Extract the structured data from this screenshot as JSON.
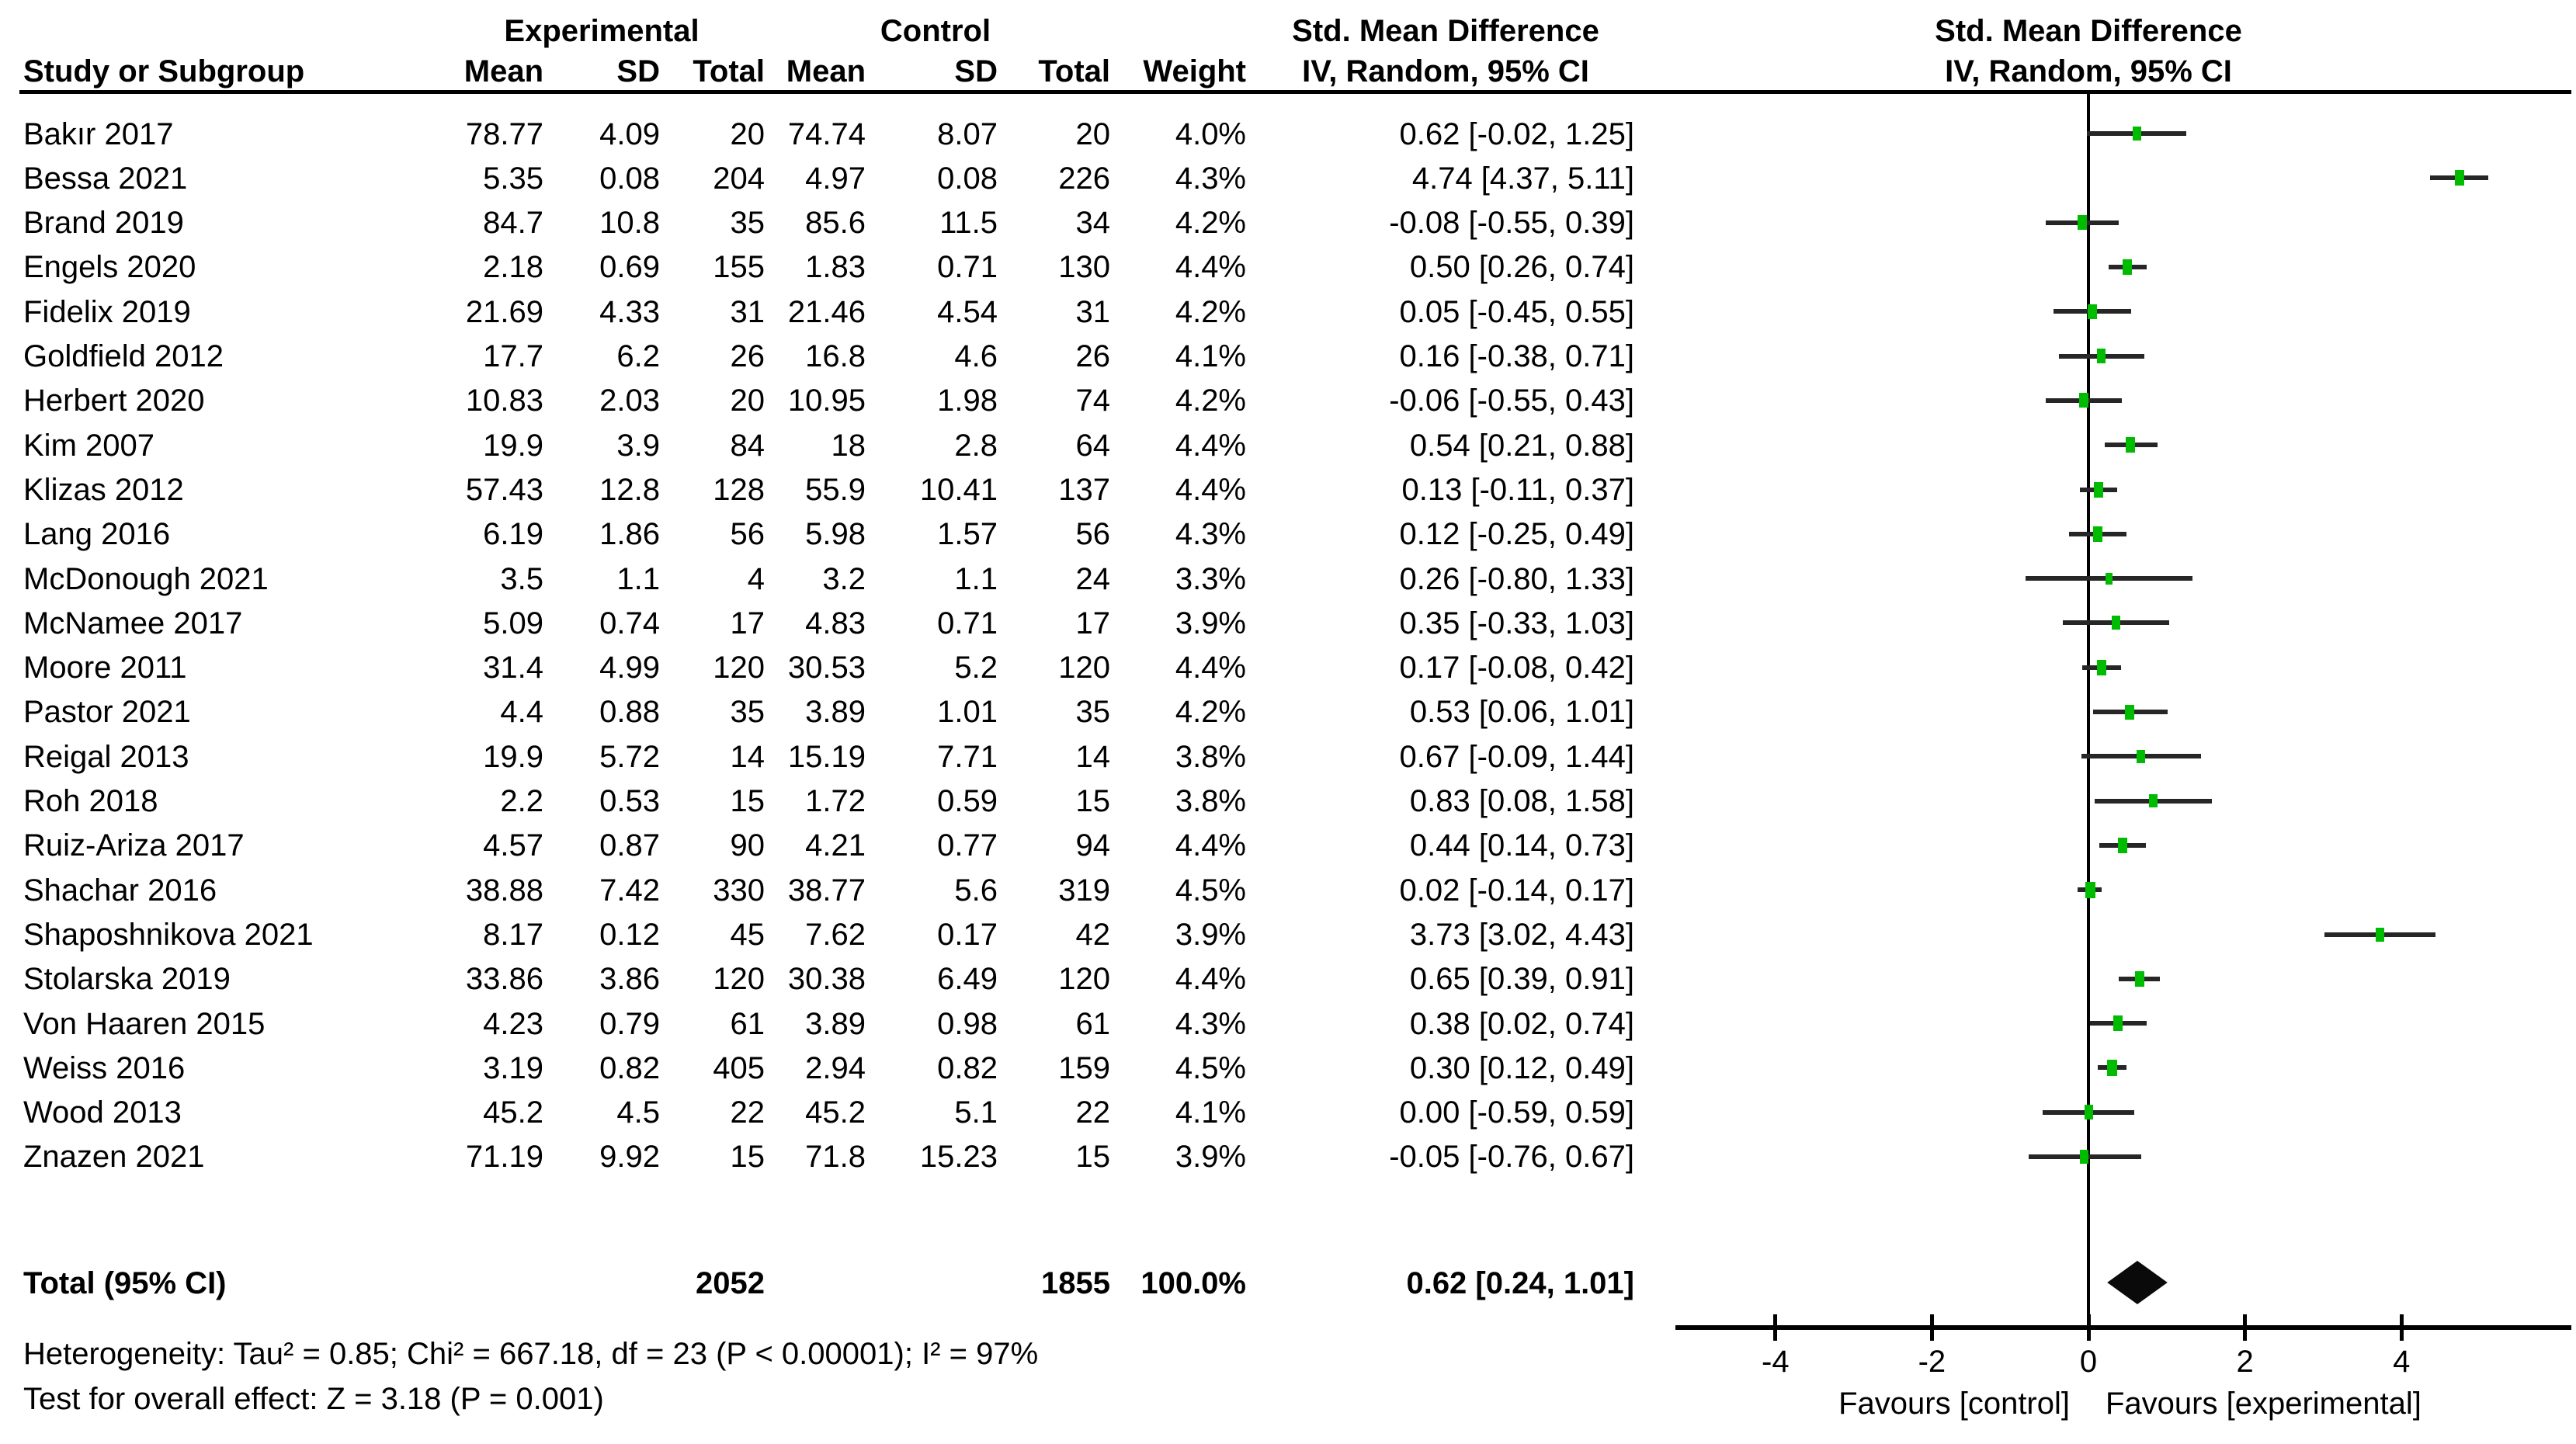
{
  "colors": {
    "marker_green": "#00BC00",
    "ci_line": "#262626",
    "diamond_black": "#0a0a0a",
    "text": "#000000"
  },
  "header": {
    "study_col": "Study or Subgroup",
    "group_experimental": "Experimental",
    "group_control": "Control",
    "mean": "Mean",
    "sd": "SD",
    "total": "Total",
    "weight": "Weight",
    "effect_title": "Std. Mean Difference",
    "effect_subtitle": "IV, Random, 95% CI",
    "plot_title": "Std. Mean Difference",
    "plot_subtitle": "IV, Random, 95% CI"
  },
  "chart_data": {
    "type": "forest",
    "x_ticks": [
      -4,
      -2,
      0,
      2,
      4
    ],
    "xlim": [
      -5.2,
      6.2
    ],
    "zero_line": 0,
    "axis_label_left": "Favours [control]",
    "axis_label_right": "Favours [experimental]",
    "studies": [
      {
        "name": "Bakır 2017",
        "exp_mean": "78.77",
        "exp_sd": "4.09",
        "exp_total": "20",
        "ctrl_mean": "74.74",
        "ctrl_sd": "8.07",
        "ctrl_total": "20",
        "weight": "4.0%",
        "ci_text": "0.62 [-0.02, 1.25]",
        "smd": 0.62,
        "lo": -0.02,
        "hi": 1.25,
        "w": 4.0
      },
      {
        "name": "Bessa 2021",
        "exp_mean": "5.35",
        "exp_sd": "0.08",
        "exp_total": "204",
        "ctrl_mean": "4.97",
        "ctrl_sd": "0.08",
        "ctrl_total": "226",
        "weight": "4.3%",
        "ci_text": "4.74 [4.37, 5.11]",
        "smd": 4.74,
        "lo": 4.37,
        "hi": 5.11,
        "w": 4.3
      },
      {
        "name": "Brand 2019",
        "exp_mean": "84.7",
        "exp_sd": "10.8",
        "exp_total": "35",
        "ctrl_mean": "85.6",
        "ctrl_sd": "11.5",
        "ctrl_total": "34",
        "weight": "4.2%",
        "ci_text": "-0.08 [-0.55, 0.39]",
        "smd": -0.08,
        "lo": -0.55,
        "hi": 0.39,
        "w": 4.2
      },
      {
        "name": "Engels 2020",
        "exp_mean": "2.18",
        "exp_sd": "0.69",
        "exp_total": "155",
        "ctrl_mean": "1.83",
        "ctrl_sd": "0.71",
        "ctrl_total": "130",
        "weight": "4.4%",
        "ci_text": "0.50 [0.26, 0.74]",
        "smd": 0.5,
        "lo": 0.26,
        "hi": 0.74,
        "w": 4.4
      },
      {
        "name": "Fidelix 2019",
        "exp_mean": "21.69",
        "exp_sd": "4.33",
        "exp_total": "31",
        "ctrl_mean": "21.46",
        "ctrl_sd": "4.54",
        "ctrl_total": "31",
        "weight": "4.2%",
        "ci_text": "0.05 [-0.45, 0.55]",
        "smd": 0.05,
        "lo": -0.45,
        "hi": 0.55,
        "w": 4.2
      },
      {
        "name": "Goldfield 2012",
        "exp_mean": "17.7",
        "exp_sd": "6.2",
        "exp_total": "26",
        "ctrl_mean": "16.8",
        "ctrl_sd": "4.6",
        "ctrl_total": "26",
        "weight": "4.1%",
        "ci_text": "0.16 [-0.38, 0.71]",
        "smd": 0.16,
        "lo": -0.38,
        "hi": 0.71,
        "w": 4.1
      },
      {
        "name": "Herbert 2020",
        "exp_mean": "10.83",
        "exp_sd": "2.03",
        "exp_total": "20",
        "ctrl_mean": "10.95",
        "ctrl_sd": "1.98",
        "ctrl_total": "74",
        "weight": "4.2%",
        "ci_text": "-0.06 [-0.55, 0.43]",
        "smd": -0.06,
        "lo": -0.55,
        "hi": 0.43,
        "w": 4.2
      },
      {
        "name": "Kim 2007",
        "exp_mean": "19.9",
        "exp_sd": "3.9",
        "exp_total": "84",
        "ctrl_mean": "18",
        "ctrl_sd": "2.8",
        "ctrl_total": "64",
        "weight": "4.4%",
        "ci_text": "0.54 [0.21, 0.88]",
        "smd": 0.54,
        "lo": 0.21,
        "hi": 0.88,
        "w": 4.4
      },
      {
        "name": "Klizas 2012",
        "exp_mean": "57.43",
        "exp_sd": "12.8",
        "exp_total": "128",
        "ctrl_mean": "55.9",
        "ctrl_sd": "10.41",
        "ctrl_total": "137",
        "weight": "4.4%",
        "ci_text": "0.13 [-0.11, 0.37]",
        "smd": 0.13,
        "lo": -0.11,
        "hi": 0.37,
        "w": 4.4
      },
      {
        "name": "Lang 2016",
        "exp_mean": "6.19",
        "exp_sd": "1.86",
        "exp_total": "56",
        "ctrl_mean": "5.98",
        "ctrl_sd": "1.57",
        "ctrl_total": "56",
        "weight": "4.3%",
        "ci_text": "0.12 [-0.25, 0.49]",
        "smd": 0.12,
        "lo": -0.25,
        "hi": 0.49,
        "w": 4.3
      },
      {
        "name": "McDonough 2021",
        "exp_mean": "3.5",
        "exp_sd": "1.1",
        "exp_total": "4",
        "ctrl_mean": "3.2",
        "ctrl_sd": "1.1",
        "ctrl_total": "24",
        "weight": "3.3%",
        "ci_text": "0.26 [-0.80, 1.33]",
        "smd": 0.26,
        "lo": -0.8,
        "hi": 1.33,
        "w": 3.3
      },
      {
        "name": "McNamee 2017",
        "exp_mean": "5.09",
        "exp_sd": "0.74",
        "exp_total": "17",
        "ctrl_mean": "4.83",
        "ctrl_sd": "0.71",
        "ctrl_total": "17",
        "weight": "3.9%",
        "ci_text": "0.35 [-0.33, 1.03]",
        "smd": 0.35,
        "lo": -0.33,
        "hi": 1.03,
        "w": 3.9
      },
      {
        "name": "Moore 2011",
        "exp_mean": "31.4",
        "exp_sd": "4.99",
        "exp_total": "120",
        "ctrl_mean": "30.53",
        "ctrl_sd": "5.2",
        "ctrl_total": "120",
        "weight": "4.4%",
        "ci_text": "0.17 [-0.08, 0.42]",
        "smd": 0.17,
        "lo": -0.08,
        "hi": 0.42,
        "w": 4.4
      },
      {
        "name": "Pastor 2021",
        "exp_mean": "4.4",
        "exp_sd": "0.88",
        "exp_total": "35",
        "ctrl_mean": "3.89",
        "ctrl_sd": "1.01",
        "ctrl_total": "35",
        "weight": "4.2%",
        "ci_text": "0.53 [0.06, 1.01]",
        "smd": 0.53,
        "lo": 0.06,
        "hi": 1.01,
        "w": 4.2
      },
      {
        "name": "Reigal 2013",
        "exp_mean": "19.9",
        "exp_sd": "5.72",
        "exp_total": "14",
        "ctrl_mean": "15.19",
        "ctrl_sd": "7.71",
        "ctrl_total": "14",
        "weight": "3.8%",
        "ci_text": "0.67 [-0.09, 1.44]",
        "smd": 0.67,
        "lo": -0.09,
        "hi": 1.44,
        "w": 3.8
      },
      {
        "name": "Roh 2018",
        "exp_mean": "2.2",
        "exp_sd": "0.53",
        "exp_total": "15",
        "ctrl_mean": "1.72",
        "ctrl_sd": "0.59",
        "ctrl_total": "15",
        "weight": "3.8%",
        "ci_text": "0.83 [0.08, 1.58]",
        "smd": 0.83,
        "lo": 0.08,
        "hi": 1.58,
        "w": 3.8
      },
      {
        "name": "Ruiz-Ariza 2017",
        "exp_mean": "4.57",
        "exp_sd": "0.87",
        "exp_total": "90",
        "ctrl_mean": "4.21",
        "ctrl_sd": "0.77",
        "ctrl_total": "94",
        "weight": "4.4%",
        "ci_text": "0.44 [0.14, 0.73]",
        "smd": 0.44,
        "lo": 0.14,
        "hi": 0.73,
        "w": 4.4
      },
      {
        "name": "Shachar 2016",
        "exp_mean": "38.88",
        "exp_sd": "7.42",
        "exp_total": "330",
        "ctrl_mean": "38.77",
        "ctrl_sd": "5.6",
        "ctrl_total": "319",
        "weight": "4.5%",
        "ci_text": "0.02 [-0.14, 0.17]",
        "smd": 0.02,
        "lo": -0.14,
        "hi": 0.17,
        "w": 4.5
      },
      {
        "name": "Shaposhnikova 2021",
        "exp_mean": "8.17",
        "exp_sd": "0.12",
        "exp_total": "45",
        "ctrl_mean": "7.62",
        "ctrl_sd": "0.17",
        "ctrl_total": "42",
        "weight": "3.9%",
        "ci_text": "3.73 [3.02, 4.43]",
        "smd": 3.73,
        "lo": 3.02,
        "hi": 4.43,
        "w": 3.9
      },
      {
        "name": "Stolarska 2019",
        "exp_mean": "33.86",
        "exp_sd": "3.86",
        "exp_total": "120",
        "ctrl_mean": "30.38",
        "ctrl_sd": "6.49",
        "ctrl_total": "120",
        "weight": "4.4%",
        "ci_text": "0.65 [0.39, 0.91]",
        "smd": 0.65,
        "lo": 0.39,
        "hi": 0.91,
        "w": 4.4
      },
      {
        "name": "Von Haaren 2015",
        "exp_mean": "4.23",
        "exp_sd": "0.79",
        "exp_total": "61",
        "ctrl_mean": "3.89",
        "ctrl_sd": "0.98",
        "ctrl_total": "61",
        "weight": "4.3%",
        "ci_text": "0.38 [0.02, 0.74]",
        "smd": 0.38,
        "lo": 0.02,
        "hi": 0.74,
        "w": 4.3
      },
      {
        "name": "Weiss 2016",
        "exp_mean": "3.19",
        "exp_sd": "0.82",
        "exp_total": "405",
        "ctrl_mean": "2.94",
        "ctrl_sd": "0.82",
        "ctrl_total": "159",
        "weight": "4.5%",
        "ci_text": "0.30 [0.12, 0.49]",
        "smd": 0.3,
        "lo": 0.12,
        "hi": 0.49,
        "w": 4.5
      },
      {
        "name": "Wood 2013",
        "exp_mean": "45.2",
        "exp_sd": "4.5",
        "exp_total": "22",
        "ctrl_mean": "45.2",
        "ctrl_sd": "5.1",
        "ctrl_total": "22",
        "weight": "4.1%",
        "ci_text": "0.00 [-0.59, 0.59]",
        "smd": 0.0,
        "lo": -0.59,
        "hi": 0.59,
        "w": 4.1
      },
      {
        "name": "Znazen 2021",
        "exp_mean": "71.19",
        "exp_sd": "9.92",
        "exp_total": "15",
        "ctrl_mean": "71.8",
        "ctrl_sd": "15.23",
        "ctrl_total": "15",
        "weight": "3.9%",
        "ci_text": "-0.05 [-0.76, 0.67]",
        "smd": -0.05,
        "lo": -0.76,
        "hi": 0.67,
        "w": 3.9
      }
    ],
    "total": {
      "label": "Total (95% CI)",
      "exp_total": "2052",
      "ctrl_total": "1855",
      "weight": "100.0%",
      "ci_text": "0.62 [0.24, 1.01]",
      "smd": 0.62,
      "lo": 0.24,
      "hi": 1.01
    }
  },
  "footer": {
    "heterogeneity": "Heterogeneity: Tau² = 0.85; Chi² = 667.18, df = 23 (P < 0.00001); I² = 97%",
    "overall_effect": "Test for overall effect: Z = 3.18 (P = 0.001)"
  }
}
